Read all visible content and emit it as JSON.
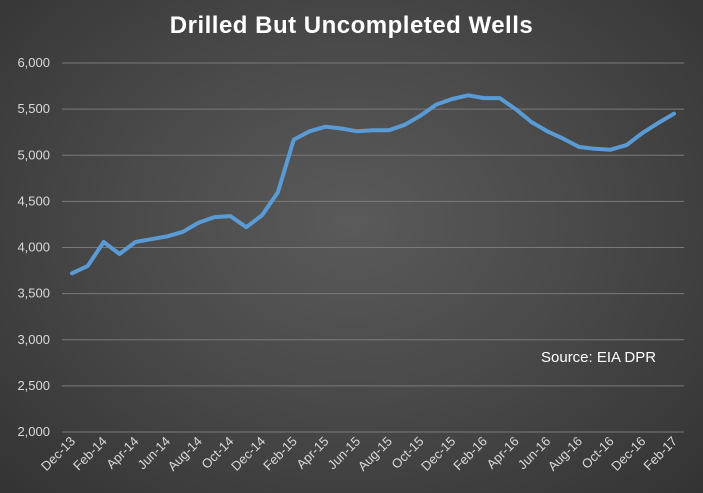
{
  "chart_data": {
    "type": "line",
    "title": "Drilled But Uncompleted Wells",
    "annotation": "Source: EIA DPR",
    "ylim": [
      2000,
      6000
    ],
    "yticks": [
      2000,
      2500,
      3000,
      3500,
      4000,
      4500,
      5000,
      5500,
      6000
    ],
    "ytick_labels": [
      "2,000",
      "2,500",
      "3,000",
      "3,500",
      "4,000",
      "4,500",
      "5,000",
      "5,500",
      "6,000"
    ],
    "xtick_labels": [
      "Dec-13",
      "Feb-14",
      "Apr-14",
      "Jun-14",
      "Aug-14",
      "Oct-14",
      "Dec-14",
      "Feb-15",
      "Apr-15",
      "Jun-15",
      "Aug-15",
      "Oct-15",
      "Dec-15",
      "Feb-16",
      "Apr-16",
      "Jun-16",
      "Aug-16",
      "Oct-16",
      "Dec-16",
      "Feb-17"
    ],
    "grid": true,
    "color": "#5b9bd5",
    "series": [
      {
        "x": [
          "Dec-13",
          "Jan-14",
          "Feb-14",
          "Mar-14",
          "Apr-14",
          "May-14",
          "Jun-14",
          "Jul-14",
          "Aug-14",
          "Sep-14",
          "Oct-14",
          "Nov-14",
          "Dec-14",
          "Jan-15",
          "Feb-15",
          "Mar-15",
          "Apr-15",
          "May-15",
          "Jun-15",
          "Jul-15",
          "Aug-15",
          "Sep-15",
          "Oct-15",
          "Nov-15",
          "Dec-15",
          "Jan-16",
          "Feb-16",
          "Mar-16",
          "Apr-16",
          "May-16",
          "Jun-16",
          "Jul-16",
          "Aug-16",
          "Sep-16",
          "Oct-16",
          "Nov-16",
          "Dec-16",
          "Jan-17",
          "Feb-17"
        ],
        "values": [
          3720,
          3800,
          4060,
          3930,
          4060,
          4090,
          4120,
          4170,
          4270,
          4330,
          4340,
          4220,
          4350,
          4600,
          5170,
          5260,
          5310,
          5290,
          5260,
          5270,
          5270,
          5330,
          5430,
          5550,
          5610,
          5650,
          5620,
          5620,
          5500,
          5360,
          5260,
          5180,
          5090,
          5070,
          5060,
          5110,
          5240,
          5350,
          5450
        ]
      }
    ]
  }
}
